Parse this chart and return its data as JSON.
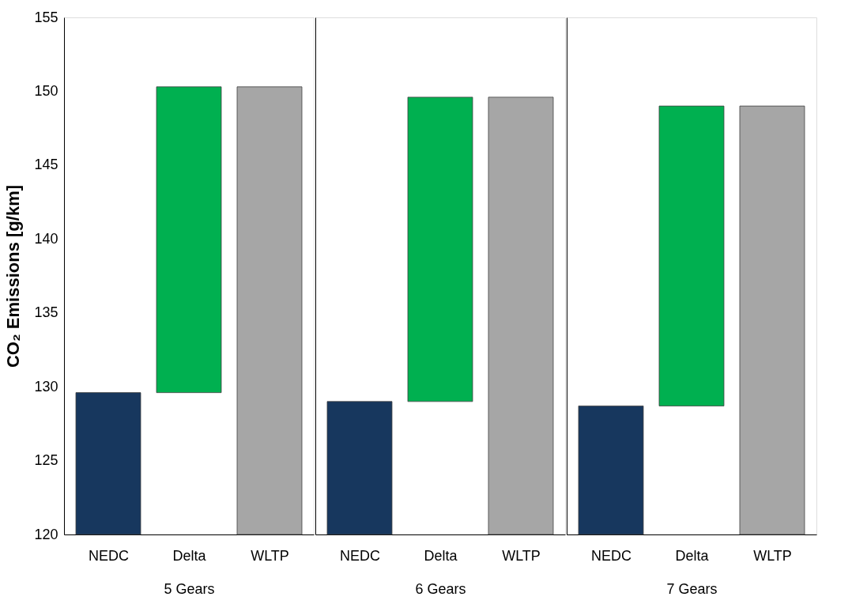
{
  "chart_data": [
    {
      "type": "bar",
      "ylabel": "CO₂ Emissions [g/km]",
      "xlabel": "5 Gears",
      "categories": [
        "NEDC",
        "Delta",
        "WLTP"
      ],
      "values": [
        129.6,
        20.7,
        150.3
      ],
      "base": [
        null,
        129.6,
        null
      ],
      "colors": [
        "#17375e",
        "#00b050",
        "#a6a6a6"
      ],
      "ylim": [
        120,
        155
      ],
      "yticks": [
        120,
        125,
        130,
        135,
        140,
        145,
        150,
        155
      ],
      "grid": false
    },
    {
      "type": "bar",
      "xlabel": "6 Gears",
      "categories": [
        "NEDC",
        "Delta",
        "WLTP"
      ],
      "values": [
        129.0,
        20.6,
        149.6
      ],
      "base": [
        null,
        129.0,
        null
      ],
      "colors": [
        "#17375e",
        "#00b050",
        "#a6a6a6"
      ],
      "ylim": [
        120,
        155
      ],
      "tick_labels": "x",
      "grid": false
    },
    {
      "type": "bar",
      "xlabel": "7 Gears",
      "categories": [
        "NEDC",
        "Delta",
        "WLTP"
      ],
      "values": [
        128.7,
        20.3,
        149.0
      ],
      "base": [
        null,
        128.7,
        null
      ],
      "colors": [
        "#17375e",
        "#00b050",
        "#a6a6a6"
      ],
      "ylim": [
        120,
        155
      ],
      "tick_labels": "x",
      "grid": false
    }
  ]
}
